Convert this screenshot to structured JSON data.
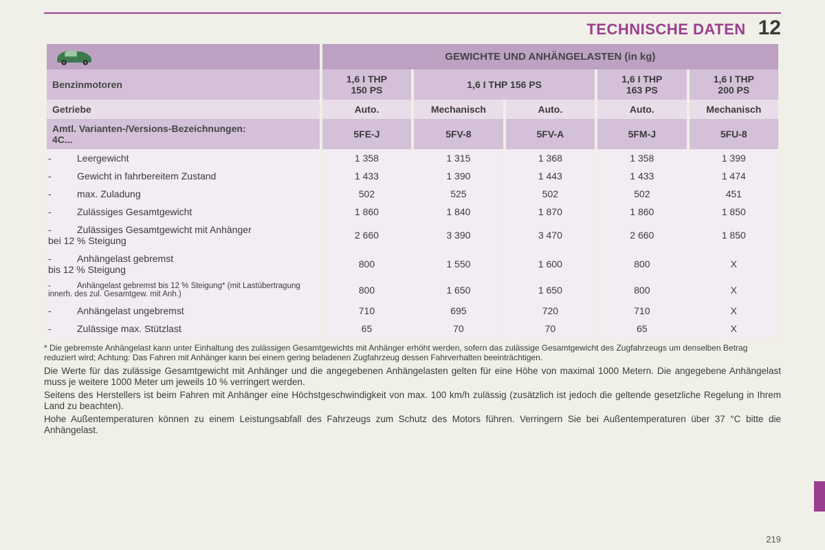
{
  "header": {
    "title": "TECHNISCHE DATEN",
    "chapter": "12"
  },
  "table": {
    "title": "GEWICHTE UND ANHÄNGELASTEN (in kg)",
    "engines_label": "Benzinmotoren",
    "engine_cols": [
      {
        "label": "1,6 I THP\n150 PS",
        "span": 1
      },
      {
        "label": "1,6 I THP 156 PS",
        "span": 2
      },
      {
        "label": "1,6 I THP\n163 PS",
        "span": 1
      },
      {
        "label": "1,6 I THP\n200 PS",
        "span": 1
      }
    ],
    "gearbox_label": "Getriebe",
    "gearboxes": [
      "Auto.",
      "Mechanisch",
      "Auto.",
      "Auto.",
      "Mechanisch"
    ],
    "variant_label": "Amtl. Varianten-/Versions-Bezeichnungen:\n4C...",
    "variants": [
      "5FE-J",
      "5FV-8",
      "5FV-A",
      "5FM-J",
      "5FU-8"
    ],
    "rows": [
      {
        "label": "Leergewicht",
        "v": [
          "1 358",
          "1 315",
          "1 368",
          "1 358",
          "1 399"
        ]
      },
      {
        "label": "Gewicht in fahrbereitem Zustand",
        "v": [
          "1 433",
          "1 390",
          "1 443",
          "1 433",
          "1 474"
        ]
      },
      {
        "label": "max. Zuladung",
        "v": [
          "502",
          "525",
          "502",
          "502",
          "451"
        ]
      },
      {
        "label": "Zulässiges Gesamtgewicht",
        "v": [
          "1 860",
          "1 840",
          "1 870",
          "1 860",
          "1 850"
        ]
      },
      {
        "label": "Zulässiges Gesamtgewicht mit Anhänger\nbei 12 % Steigung",
        "v": [
          "2 660",
          "3 390",
          "3 470",
          "2 660",
          "1 850"
        ]
      },
      {
        "label": "Anhängelast gebremst\nbis 12 % Steigung",
        "v": [
          "800",
          "1 550",
          "1 600",
          "800",
          "X"
        ]
      },
      {
        "label": "Anhängelast gebremst bis 12 % Steigung* (mit Lastübertragung innerh. des zul. Gesamtgew. mit Anh.)",
        "small": true,
        "v": [
          "800",
          "1 650",
          "1 650",
          "800",
          "X"
        ]
      },
      {
        "label": "Anhängelast ungebremst",
        "v": [
          "710",
          "695",
          "720",
          "710",
          "X"
        ]
      },
      {
        "label": "Zulässige max. Stützlast",
        "v": [
          "65",
          "70",
          "70",
          "65",
          "X"
        ]
      }
    ]
  },
  "footnote": "* Die gebremste Anhängelast kann unter Einhaltung des zulässigen Gesamtgewichts mit Anhänger erhöht werden, sofern das zulässige Gesamtgewicht des Zugfahrzeugs um denselben Betrag reduziert wird; Achtung: Das Fahren mit Anhänger kann bei einem gering beladenen Zugfahrzeug dessen Fahrverhalten beeinträchtigen.",
  "notes": [
    "Die Werte für das zulässige Gesamtgewicht mit Anhänger und die angegebenen Anhängelasten gelten für eine Höhe von maximal 1000 Metern. Die angegebene Anhängelast muss je weitere 1000 Meter um jeweils 10 % verringert werden.",
    "Seitens des Herstellers ist beim Fahren mit Anhänger eine Höchstgeschwindigkeit von max. 100 km/h zulässig (zusätzlich ist jedoch die geltende gesetzliche Regelung in Ihrem Land zu beachten).",
    "Hohe Außentemperaturen können zu einem Leistungsabfall des Fahrzeugs zum Schutz des Motors führen. Verringern Sie bei Außentemperaturen über 37 °C bitte die Anhängelast."
  ],
  "page_number": "219"
}
